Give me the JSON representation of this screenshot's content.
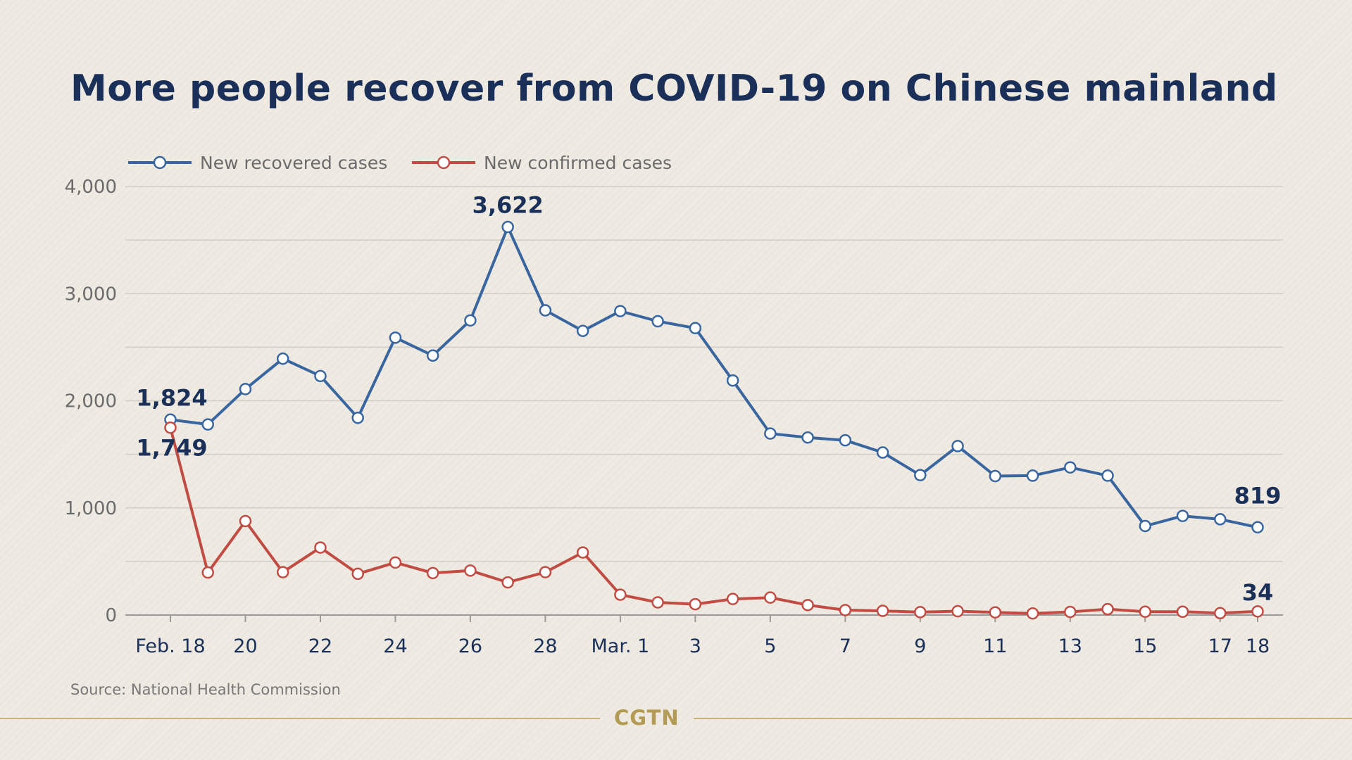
{
  "chart_data": {
    "type": "line",
    "title": "More people recover from COVID-19 on Chinese mainland",
    "source": "Source: National Health Commission",
    "brand": "CGTN",
    "legend_position": "top-left",
    "grid": true,
    "ylim": [
      0,
      4000
    ],
    "y_ticks": [
      0,
      1000,
      2000,
      3000,
      4000
    ],
    "y_tick_labels": [
      "0",
      "1,000",
      "2,000",
      "3,000",
      "4,000"
    ],
    "x": [
      "Feb. 18",
      "Feb. 19",
      "Feb. 20",
      "Feb. 21",
      "Feb. 22",
      "Feb. 23",
      "Feb. 24",
      "Feb. 25",
      "Feb. 26",
      "Feb. 27",
      "Feb. 28",
      "Feb. 29",
      "Mar. 1",
      "Mar. 2",
      "Mar. 3",
      "Mar. 4",
      "Mar. 5",
      "Mar. 6",
      "Mar. 7",
      "Mar. 8",
      "Mar. 9",
      "Mar. 10",
      "Mar. 11",
      "Mar. 12",
      "Mar. 13",
      "Mar. 14",
      "Mar. 15",
      "Mar. 16",
      "Mar. 17",
      "Mar. 18"
    ],
    "x_ticks": [
      {
        "index": 0,
        "label": "Feb. 18"
      },
      {
        "index": 2,
        "label": "20"
      },
      {
        "index": 4,
        "label": "22"
      },
      {
        "index": 6,
        "label": "24"
      },
      {
        "index": 8,
        "label": "26"
      },
      {
        "index": 10,
        "label": "28"
      },
      {
        "index": 12,
        "label": "Mar. 1"
      },
      {
        "index": 14,
        "label": "3"
      },
      {
        "index": 16,
        "label": "5"
      },
      {
        "index": 18,
        "label": "7"
      },
      {
        "index": 20,
        "label": "9"
      },
      {
        "index": 22,
        "label": "11"
      },
      {
        "index": 24,
        "label": "13"
      },
      {
        "index": 26,
        "label": "15"
      },
      {
        "index": 28,
        "label": "17"
      },
      {
        "index": 29,
        "label": "18"
      }
    ],
    "series": [
      {
        "name": "New recovered cases",
        "color": "#3a66a0",
        "values": [
          1824,
          1779,
          2109,
          2393,
          2231,
          1841,
          2589,
          2422,
          2750,
          3622,
          2844,
          2652,
          2837,
          2742,
          2678,
          2189,
          1694,
          1657,
          1631,
          1517,
          1306,
          1577,
          1297,
          1301,
          1378,
          1301,
          831,
          925,
          894,
          819
        ]
      },
      {
        "name": "New confirmed cases",
        "color": "#c14c44",
        "values": [
          1749,
          397,
          877,
          400,
          630,
          385,
          490,
          392,
          415,
          305,
          400,
          584,
          190,
          118,
          101,
          150,
          163,
          93,
          46,
          39,
          27,
          36,
          25,
          15,
          29,
          55,
          31,
          31,
          18,
          34
        ]
      }
    ],
    "annotations": [
      {
        "series": 0,
        "index": 0,
        "text": "1,824"
      },
      {
        "series": 1,
        "index": 0,
        "text": "1,749"
      },
      {
        "series": 0,
        "index": 9,
        "text": "3,622"
      },
      {
        "series": 0,
        "index": 29,
        "text": "819"
      },
      {
        "series": 1,
        "index": 29,
        "text": "34"
      }
    ]
  }
}
